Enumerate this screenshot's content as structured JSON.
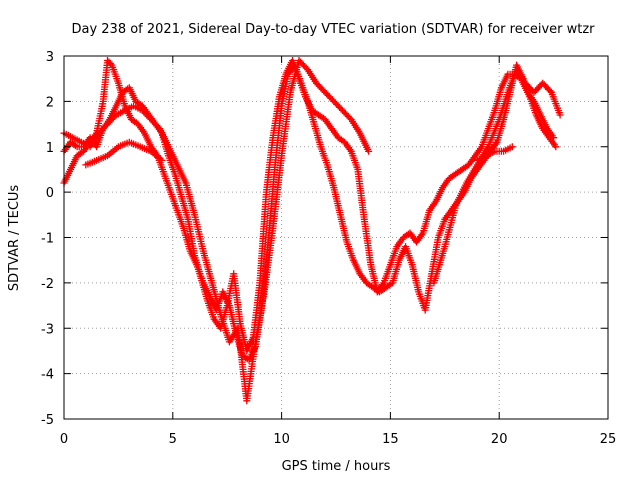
{
  "chart_data": {
    "type": "scatter",
    "title": "Day 238 of 2021, Sidereal Day-to-day VTEC variation (SDTVAR) for receiver wtzr",
    "xlabel": "GPS time / hours",
    "ylabel": "SDTVAR / TECUs",
    "xlim": [
      0,
      25
    ],
    "ylim": [
      -5,
      3
    ],
    "xticks": [
      "0",
      "5",
      "10",
      "15",
      "20",
      "25"
    ],
    "yticks": [
      "-5",
      "-4",
      "-3",
      "-2",
      "-1",
      "0",
      "1",
      "2",
      "3"
    ],
    "grid": true,
    "marker": "plus",
    "color": "#ff0000",
    "series": [
      {
        "name": "track-1",
        "x": [
          0.0,
          0.3,
          0.6,
          0.9,
          1.2,
          1.5,
          1.8,
          2.1,
          2.4,
          2.7,
          3.0,
          3.3,
          3.6,
          3.9,
          4.2,
          4.5,
          4.8,
          5.1,
          5.4,
          5.7,
          6.0,
          6.3,
          6.6,
          6.9,
          7.2,
          7.5,
          7.8,
          8.1,
          8.4,
          8.7,
          9.0,
          9.3,
          9.6,
          9.9,
          10.2,
          10.5,
          10.8,
          11.1,
          11.4,
          11.7,
          12.0,
          12.3,
          12.6,
          12.9,
          13.2,
          13.5,
          13.8,
          14.1,
          14.4,
          14.7,
          15.0,
          15.3,
          15.6,
          15.9,
          16.2,
          16.5,
          16.8,
          17.1,
          17.4,
          17.7,
          18.0,
          18.3,
          18.6,
          18.9,
          19.2,
          19.5,
          19.8,
          20.1,
          20.4,
          20.7,
          21.0,
          21.3,
          21.6,
          21.9,
          22.2,
          22.5
        ],
        "y": [
          0.9,
          1.1,
          1.0,
          1.0,
          1.2,
          1.0,
          1.4,
          1.6,
          1.9,
          2.2,
          2.3,
          2.0,
          1.9,
          1.7,
          1.5,
          1.3,
          0.8,
          0.4,
          -0.1,
          -0.6,
          -1.4,
          -1.9,
          -2.4,
          -2.8,
          -3.0,
          -2.5,
          -1.8,
          -2.9,
          -3.5,
          -3.2,
          -2.0,
          0.0,
          1.2,
          2.1,
          2.6,
          2.9,
          2.5,
          2.1,
          1.8,
          1.7,
          1.6,
          1.4,
          1.2,
          1.1,
          0.9,
          0.5,
          -0.6,
          -1.6,
          -2.2,
          -2.0,
          -1.6,
          -1.2,
          -1.0,
          -0.9,
          -1.1,
          -0.9,
          -0.4,
          -0.2,
          0.1,
          0.3,
          0.4,
          0.5,
          0.6,
          0.8,
          1.0,
          1.4,
          1.8,
          2.3,
          2.6,
          2.6,
          2.5,
          2.2,
          2.0,
          1.7,
          1.4,
          1.2
        ]
      },
      {
        "name": "track-2",
        "x": [
          0.0,
          0.3,
          0.6,
          0.9,
          1.2,
          1.5,
          1.8,
          2.0,
          2.2,
          2.5,
          2.8,
          3.1,
          3.4,
          3.7,
          4.0,
          4.3,
          4.6,
          4.9,
          5.2,
          5.5,
          5.8,
          6.1,
          6.4,
          6.7,
          7.0,
          7.3,
          7.6,
          7.9,
          8.2,
          8.5,
          8.8,
          9.1,
          9.4,
          9.7,
          10.0,
          10.3,
          10.6,
          10.9,
          11.2,
          11.5,
          11.8,
          12.1,
          12.4,
          12.7,
          13.0,
          13.3,
          13.6,
          13.9,
          14.2,
          14.5,
          14.8,
          15.1,
          15.4,
          15.7,
          16.0,
          16.3,
          16.6,
          16.9,
          17.2,
          17.5,
          17.8,
          18.1,
          18.4,
          18.7,
          19.0,
          19.3,
          19.6,
          19.9,
          20.2,
          20.5,
          20.8,
          21.1,
          21.4,
          21.7,
          22.0,
          22.3,
          22.6
        ],
        "y": [
          0.2,
          0.5,
          0.8,
          0.9,
          1.1,
          1.3,
          2.0,
          2.9,
          2.8,
          2.4,
          1.9,
          1.6,
          1.5,
          1.3,
          1.0,
          0.8,
          0.4,
          0.0,
          -0.4,
          -0.8,
          -1.3,
          -1.6,
          -2.0,
          -2.3,
          -2.6,
          -2.2,
          -2.5,
          -3.1,
          -3.6,
          -3.7,
          -3.4,
          -2.5,
          -1.0,
          0.6,
          1.9,
          2.6,
          2.8,
          2.4,
          2.0,
          1.5,
          1.0,
          0.6,
          0.1,
          -0.5,
          -1.1,
          -1.5,
          -1.8,
          -2.0,
          -2.1,
          -2.2,
          -2.1,
          -2.0,
          -1.5,
          -1.2,
          -1.6,
          -2.2,
          -2.6,
          -1.8,
          -1.0,
          -0.6,
          -0.4,
          -0.2,
          0.0,
          0.3,
          0.5,
          0.7,
          0.9,
          1.1,
          1.6,
          2.2,
          2.8,
          2.5,
          2.1,
          1.7,
          1.4,
          1.2,
          1.0
        ]
      },
      {
        "name": "track-3",
        "x": [
          0.0,
          0.4,
          0.8,
          1.2,
          1.6,
          2.0,
          2.4,
          2.8,
          3.2,
          3.6,
          4.0,
          4.4,
          4.8,
          5.2,
          5.6,
          6.0,
          6.4,
          6.8,
          7.2,
          7.6,
          8.0,
          8.4,
          8.8,
          9.2,
          9.6,
          10.0,
          10.4,
          10.8,
          11.2,
          11.6,
          12.0,
          12.4,
          12.8,
          13.2,
          13.6,
          14.0
        ],
        "y": [
          1.3,
          1.2,
          1.1,
          1.0,
          1.3,
          1.5,
          1.7,
          1.8,
          1.9,
          1.8,
          1.6,
          1.4,
          1.0,
          0.6,
          0.2,
          -0.5,
          -1.3,
          -2.0,
          -2.7,
          -3.3,
          -3.0,
          -4.6,
          -3.3,
          -2.2,
          -0.8,
          0.8,
          2.2,
          2.9,
          2.7,
          2.4,
          2.2,
          2.0,
          1.8,
          1.6,
          1.3,
          0.9
        ]
      },
      {
        "name": "track-4",
        "x": [
          17.0,
          17.5,
          18.0,
          18.5,
          19.0,
          19.5,
          20.0,
          20.4,
          20.8,
          21.2,
          21.6,
          22.0,
          22.4,
          22.8
        ],
        "y": [
          -2.0,
          -1.2,
          -0.3,
          0.2,
          0.6,
          1.0,
          1.6,
          2.2,
          2.7,
          2.4,
          2.2,
          2.4,
          2.2,
          1.7
        ]
      },
      {
        "name": "track-5",
        "x": [
          1.0,
          1.5,
          2.0,
          2.5,
          3.0,
          3.5,
          4.0,
          4.5
        ],
        "y": [
          0.6,
          0.7,
          0.8,
          1.0,
          1.1,
          1.0,
          0.9,
          0.7
        ]
      },
      {
        "name": "track-6",
        "x": [
          19.0,
          19.4,
          19.8,
          20.2,
          20.6
        ],
        "y": [
          0.7,
          0.8,
          0.9,
          0.9,
          1.0
        ]
      }
    ]
  }
}
